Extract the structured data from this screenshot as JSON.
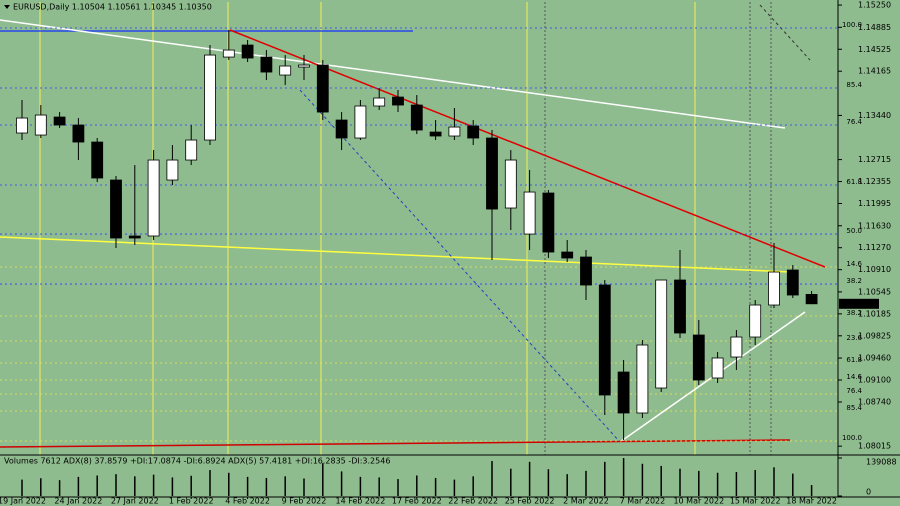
{
  "chart_data": {
    "type": "candlestick",
    "title": "EURUSD,Daily  1.10504 1.10561 1.10345 1.10350",
    "categories": [
      "19 Jan 2022",
      null,
      null,
      "24 Jan 2022",
      null,
      null,
      "27 Jan 2022",
      null,
      null,
      "1 Feb 2022",
      null,
      null,
      "4 Feb 2022",
      null,
      null,
      "9 Feb 2022",
      null,
      null,
      "14 Feb 2022",
      null,
      null,
      "17 Feb 2022",
      null,
      null,
      "22 Feb 2022",
      null,
      null,
      "25 Feb 2022",
      null,
      null,
      "2 Mar 2022",
      null,
      null,
      "7 Mar 2022",
      null,
      null,
      "10 Mar 2022",
      null,
      null,
      "15 Mar 2022",
      null,
      null,
      "18 Mar 2022"
    ],
    "open": [
      1.13151,
      1.13118,
      1.13413,
      1.13282,
      1.13003,
      1.1238,
      1.11462,
      1.11462,
      1.1238,
      1.12708,
      1.13036,
      1.14397,
      1.14594,
      1.14397,
      1.14102,
      1.14233,
      1.14266,
      1.13364,
      1.13069,
      1.13594,
      1.13741,
      1.1361,
      1.13167,
      1.13102,
      1.13266,
      1.13069,
      1.11921,
      1.11494,
      1.12167,
      1.11199,
      1.11117,
      1.10658,
      1.09231,
      1.08559,
      1.08969,
      1.1074,
      1.09838,
      1.09133,
      1.09477,
      1.09805,
      1.1033,
      1.10904,
      1.10504
    ],
    "high": [
      1.13692,
      1.1361,
      1.13495,
      1.13397,
      1.13069,
      1.12446,
      1.12626,
      1.12872,
      1.12954,
      1.13282,
      1.14594,
      1.1484,
      1.14676,
      1.14512,
      1.1443,
      1.1443,
      1.14348,
      1.13495,
      1.13692,
      1.13889,
      1.13856,
      1.13774,
      1.13364,
      1.13561,
      1.13364,
      1.132,
      1.12872,
      1.12544,
      1.12216,
      1.11396,
      1.11232,
      1.1074,
      1.09428,
      1.09756,
      1.1074,
      1.11232,
      1.10084,
      1.09559,
      1.0992,
      1.10412,
      1.11347,
      1.10986,
      1.10561
    ],
    "low": [
      1.13036,
      1.13069,
      1.13233,
      1.12708,
      1.12347,
      1.11265,
      1.11314,
      1.11396,
      1.12298,
      1.12626,
      1.12954,
      1.14348,
      1.14316,
      1.1402,
      1.13938,
      1.1402,
      1.13364,
      1.12872,
      1.13036,
      1.13528,
      1.13495,
      1.13134,
      1.13036,
      1.13036,
      1.12954,
      1.11068,
      1.1156,
      1.11232,
      1.11101,
      1.11035,
      1.10412,
      1.08526,
      1.08116,
      1.08477,
      1.08903,
      1.09789,
      1.09018,
      1.09051,
      1.09264,
      1.09674,
      1.10281,
      1.10445,
      1.10345
    ],
    "close": [
      1.13397,
      1.13446,
      1.13282,
      1.13003,
      1.12413,
      1.11429,
      1.11429,
      1.12708,
      1.12708,
      1.13036,
      1.1443,
      1.14512,
      1.14381,
      1.14151,
      1.1425,
      1.14266,
      1.13495,
      1.13069,
      1.13594,
      1.13725,
      1.1361,
      1.132,
      1.13102,
      1.13249,
      1.13069,
      1.11904,
      1.12708,
      1.12183,
      1.11199,
      1.11101,
      1.10658,
      1.08854,
      1.08559,
      1.09674,
      1.1074,
      1.09871,
      1.091,
      1.09461,
      1.09805,
      1.1033,
      1.10871,
      1.10494,
      1.1035
    ],
    "up_color": "#ffffff",
    "down_color": "#000000",
    "ylim": [
      1.0787,
      1.153
    ],
    "yticks": [
      {
        "value": 1.1525,
        "label": "1.15250"
      },
      {
        "value": 1.14885,
        "label": "1.14885"
      },
      {
        "value": 1.14525,
        "label": "1.14525"
      },
      {
        "value": 1.14165,
        "label": "1.14165"
      },
      {
        "value": 1.1344,
        "label": "1.13440"
      },
      {
        "value": 1.12715,
        "label": "1.12715"
      },
      {
        "value": 1.12355,
        "label": "1.12355"
      },
      {
        "value": 1.11995,
        "label": "1.11995"
      },
      {
        "value": 1.1163,
        "label": "1.11630"
      },
      {
        "value": 1.1127,
        "label": "1.11270"
      },
      {
        "value": 1.1091,
        "label": "1.10910"
      },
      {
        "value": 1.10545,
        "label": "1.10545"
      },
      {
        "value": 1.10185,
        "label": "1.10185"
      },
      {
        "value": 1.09825,
        "label": "1.09825"
      },
      {
        "value": 1.0946,
        "label": "1.09460"
      },
      {
        "value": 1.091,
        "label": "1.09100"
      },
      {
        "value": 1.0874,
        "label": "1.08740"
      },
      {
        "value": 1.08015,
        "label": "1.08015"
      }
    ],
    "last_price": {
      "value": 1.1035,
      "label": "1.10350"
    },
    "fib_grids": [
      {
        "color": "#2a3cff",
        "levels": [
          {
            "value": 1.14873,
            "label": "100.0"
          },
          {
            "value": 1.13889,
            "label": "85.4"
          },
          {
            "value": 1.13282,
            "label": "76.4"
          },
          {
            "value": 1.12298,
            "label": "61.8"
          },
          {
            "value": 1.11494,
            "label": "50.0"
          },
          {
            "value": 1.10674,
            "label": "38.2"
          }
        ]
      },
      {
        "color": "#e8e850",
        "levels": [
          {
            "value": 1.10953,
            "label": "14.6"
          },
          {
            "value": 1.1015,
            "label": "38.2"
          },
          {
            "value": 1.0974,
            "label": "23.6"
          },
          {
            "value": 1.09379,
            "label": "61.8"
          },
          {
            "value": 1.091,
            "label": "14.6"
          },
          {
            "value": 1.0887,
            "label": "76.4"
          },
          {
            "value": 1.08592,
            "label": "85.4"
          },
          {
            "value": 1.081,
            "label": "100.0"
          }
        ]
      }
    ],
    "volume": {
      "label": "Volumes 7612  ADX(8) 37.8579 +DI:17.0874 -DI:6.8924  ADX(5) 57.4181 +DI:16.2835 -DI:3.2546",
      "values": [
        60000,
        65000,
        58000,
        70000,
        75000,
        80000,
        72000,
        78000,
        68000,
        74000,
        95000,
        85000,
        70000,
        66000,
        72000,
        64000,
        120000,
        90000,
        70000,
        68000,
        62000,
        75000,
        66000,
        60000,
        72000,
        128000,
        100000,
        125000,
        98000,
        80000,
        92000,
        125000,
        139088,
        118000,
        110000,
        100000,
        92000,
        85000,
        88000,
        95000,
        105000,
        82000,
        40000
      ],
      "ylim": [
        0,
        139088
      ],
      "yticks": [
        139088,
        0
      ]
    }
  }
}
